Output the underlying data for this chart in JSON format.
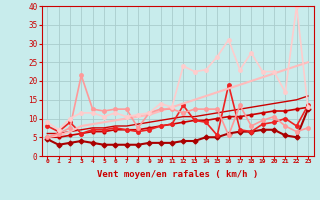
{
  "title": "",
  "xlabel": "Vent moyen/en rafales ( km/h )",
  "xlim": [
    -0.5,
    23.5
  ],
  "ylim": [
    0,
    40
  ],
  "xticks": [
    0,
    1,
    2,
    3,
    4,
    5,
    6,
    7,
    8,
    9,
    10,
    11,
    12,
    13,
    14,
    15,
    16,
    17,
    18,
    19,
    20,
    21,
    22,
    23
  ],
  "yticks": [
    0,
    5,
    10,
    15,
    20,
    25,
    30,
    35,
    40
  ],
  "background_color": "#c8ecec",
  "grid_color": "#b0d8d8",
  "series": [
    {
      "x": [
        0,
        1,
        2,
        3,
        4,
        5,
        6,
        7,
        8,
        9,
        10,
        11,
        12,
        13,
        14,
        15,
        16,
        17,
        18,
        19,
        20,
        21,
        22,
        23
      ],
      "y": [
        4.5,
        3.0,
        3.5,
        4.0,
        3.5,
        3.0,
        3.0,
        3.0,
        3.0,
        3.5,
        3.5,
        3.5,
        4.0,
        4.0,
        5.0,
        5.0,
        6.0,
        6.5,
        6.5,
        7.0,
        7.0,
        5.5,
        5.0,
        12.5
      ],
      "color": "#aa0000",
      "linewidth": 1.5,
      "marker": "D",
      "markersize": 2.5
    },
    {
      "x": [
        0,
        1,
        2,
        3,
        4,
        5,
        6,
        7,
        8,
        9,
        10,
        11,
        12,
        13,
        14,
        15,
        16,
        17,
        18,
        19,
        20,
        21,
        22,
        23
      ],
      "y": [
        5.0,
        5.0,
        5.5,
        6.0,
        6.5,
        6.5,
        7.0,
        7.0,
        7.0,
        7.5,
        8.0,
        8.5,
        9.0,
        9.5,
        9.5,
        10.0,
        10.5,
        10.5,
        11.0,
        11.5,
        12.0,
        12.0,
        12.5,
        13.0
      ],
      "color": "#cc0000",
      "linewidth": 1.2,
      "marker": "o",
      "markersize": 2.0
    },
    {
      "x": [
        0,
        1,
        2,
        3,
        4,
        5,
        6,
        7,
        8,
        9,
        10,
        11,
        12,
        13,
        14,
        15,
        16,
        17,
        18,
        19,
        20,
        21,
        22,
        23
      ],
      "y": [
        6.0,
        6.0,
        6.5,
        7.0,
        7.5,
        7.5,
        8.0,
        8.0,
        8.5,
        9.0,
        9.5,
        10.0,
        10.5,
        10.5,
        11.0,
        11.5,
        12.0,
        12.5,
        13.0,
        13.5,
        14.0,
        14.5,
        15.0,
        16.0
      ],
      "color": "#cc0000",
      "linewidth": 1.0,
      "marker": null,
      "markersize": 0
    },
    {
      "x": [
        0,
        1,
        2,
        3,
        4,
        5,
        6,
        7,
        8,
        9,
        10,
        11,
        12,
        13,
        14,
        15,
        16,
        17,
        18,
        19,
        20,
        21,
        22,
        23
      ],
      "y": [
        8.0,
        6.5,
        9.0,
        6.0,
        7.0,
        7.0,
        7.5,
        7.0,
        6.5,
        7.0,
        8.0,
        8.5,
        13.5,
        9.5,
        9.0,
        5.5,
        19.0,
        7.0,
        6.5,
        8.5,
        9.0,
        10.0,
        8.0,
        13.5
      ],
      "color": "#ee2222",
      "linewidth": 1.2,
      "marker": "o",
      "markersize": 2.5
    },
    {
      "x": [
        0,
        1,
        2,
        3,
        4,
        5,
        6,
        7,
        8,
        9,
        10,
        11,
        12,
        13,
        14,
        15,
        16,
        17,
        18,
        19,
        20,
        21,
        22,
        23
      ],
      "y": [
        5.0,
        5.5,
        6.5,
        8.0,
        8.5,
        9.0,
        9.5,
        10.0,
        10.5,
        11.0,
        12.0,
        13.0,
        14.0,
        15.0,
        16.0,
        17.0,
        18.0,
        19.0,
        20.0,
        21.0,
        22.0,
        23.0,
        24.0,
        25.0
      ],
      "color": "#ffbbbb",
      "linewidth": 1.5,
      "marker": null,
      "markersize": 0
    },
    {
      "x": [
        0,
        1,
        2,
        3,
        4,
        5,
        6,
        7,
        8,
        9,
        10,
        11,
        12,
        13,
        14,
        15,
        16,
        17,
        18,
        19,
        20,
        21,
        22,
        23
      ],
      "y": [
        5.0,
        6.0,
        7.5,
        21.5,
        12.5,
        12.0,
        12.5,
        12.5,
        7.5,
        11.5,
        12.5,
        12.5,
        11.5,
        12.5,
        12.5,
        12.5,
        5.5,
        13.5,
        8.0,
        9.5,
        10.5,
        8.0,
        6.5,
        7.5
      ],
      "color": "#ff9999",
      "linewidth": 1.2,
      "marker": "o",
      "markersize": 2.5
    },
    {
      "x": [
        0,
        1,
        2,
        3,
        4,
        5,
        6,
        7,
        8,
        9,
        10,
        11,
        12,
        13,
        14,
        15,
        16,
        17,
        18,
        19,
        20,
        21,
        22,
        23
      ],
      "y": [
        9.0,
        7.0,
        10.0,
        11.5,
        11.5,
        10.5,
        11.5,
        10.5,
        11.0,
        11.5,
        14.0,
        13.0,
        24.0,
        22.5,
        23.0,
        26.5,
        31.0,
        23.0,
        27.5,
        22.5,
        22.5,
        17.0,
        40.0,
        13.0
      ],
      "color": "#ffcccc",
      "linewidth": 1.2,
      "marker": "o",
      "markersize": 2.5
    }
  ]
}
